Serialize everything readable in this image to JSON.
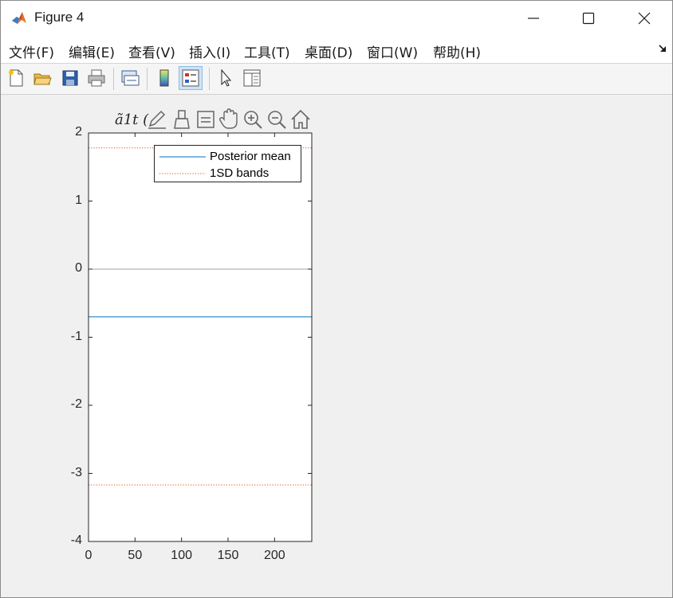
{
  "window": {
    "title": "Figure 4",
    "controls": [
      "minimize-icon",
      "maximize-icon",
      "close-icon"
    ]
  },
  "menubar": {
    "items": [
      {
        "label": "文件(F)"
      },
      {
        "label": "编辑(E)"
      },
      {
        "label": "查看(V)"
      },
      {
        "label": "插入(I)"
      },
      {
        "label": "工具(T)"
      },
      {
        "label": "桌面(D)"
      },
      {
        "label": "窗口(W)"
      },
      {
        "label": "帮助(H)"
      }
    ]
  },
  "toolbar": {
    "buttons": [
      {
        "icon": "new-figure-icon"
      },
      {
        "icon": "open-file-icon"
      },
      {
        "icon": "save-icon"
      },
      {
        "icon": "print-icon"
      },
      {
        "icon": "link-plot-icon"
      },
      {
        "icon": "colorbar-icon"
      },
      {
        "icon": "legend-icon",
        "active": true
      },
      {
        "icon": "pointer-icon"
      },
      {
        "icon": "property-inspector-icon"
      }
    ]
  },
  "axes_toolbar": {
    "icons": [
      "brush-edit-icon",
      "data-brush-icon",
      "data-tips-icon",
      "pan-hand-icon",
      "zoom-in-icon",
      "zoom-out-icon",
      "home-icon"
    ]
  },
  "chart_data": {
    "type": "line",
    "title": "ã1t (",
    "xlabel": "",
    "ylabel": "",
    "xlim": [
      0,
      240
    ],
    "ylim": [
      -4,
      2
    ],
    "x_ticks": [
      "0",
      "50",
      "100",
      "150",
      "200"
    ],
    "y_ticks": [
      "2",
      "1",
      "0",
      "-1",
      "-2",
      "-3",
      "-4"
    ],
    "grid": false,
    "legend_position": "top-right",
    "series": [
      {
        "name": "Posterior mean",
        "color": "#0072bd",
        "style": "solid",
        "x": [
          0,
          240
        ],
        "y": [
          -0.7,
          -0.7
        ]
      },
      {
        "name": "1SD bands",
        "color": "#d95319",
        "style": "dotted",
        "x": [
          0,
          240
        ],
        "y": [
          1.78,
          1.78
        ]
      },
      {
        "name": "",
        "color": "#d95319",
        "style": "dotted",
        "x": [
          0,
          240
        ],
        "y": [
          -3.17,
          -3.17
        ]
      },
      {
        "name": "",
        "color": "#a0a0a0",
        "style": "solid",
        "x": [
          0,
          240
        ],
        "y": [
          0,
          0
        ]
      }
    ]
  }
}
